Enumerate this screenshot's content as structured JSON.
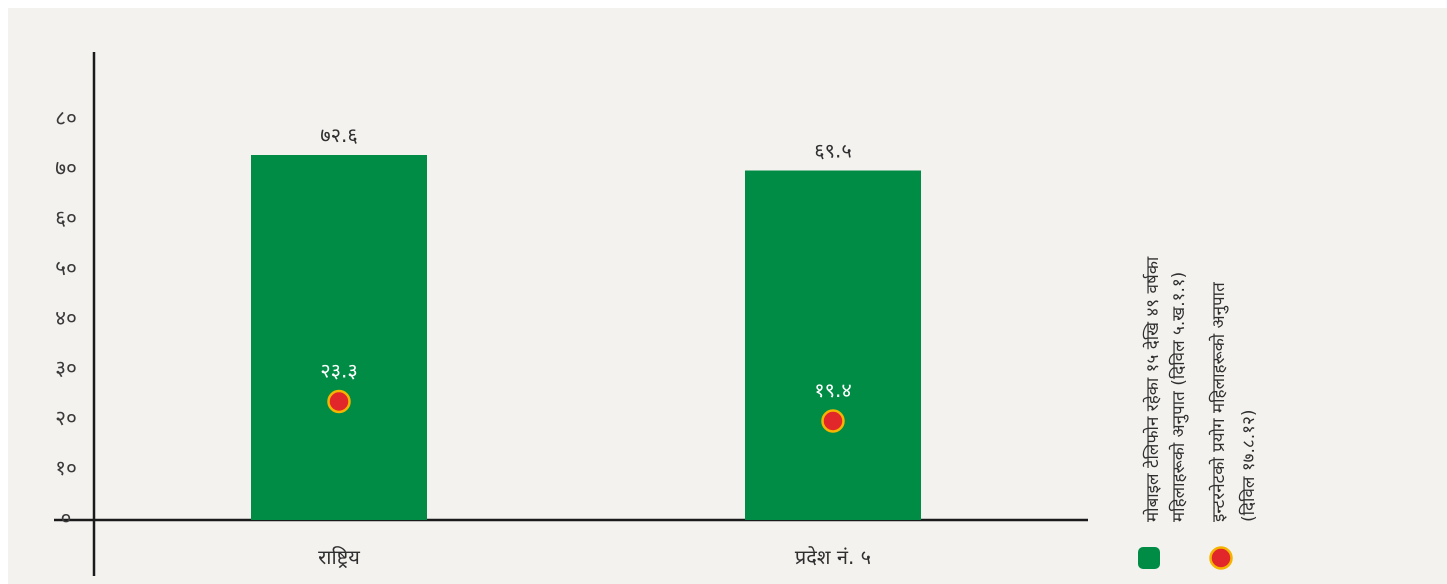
{
  "chart_data": {
    "type": "bar",
    "categories": [
      "राष्ट्रिय",
      "प्रदेश नं. ५"
    ],
    "series": [
      {
        "name": "मोबाइल टेलिफोन रहेका १५ देखि ४९ वर्षका महिलाहरूको अनुपात (दिविल ५.ख.१.१)",
        "kind": "bar",
        "color": "#008c44",
        "values": [
          72.6,
          69.5
        ],
        "labels": [
          "७२.६",
          "६९.५"
        ]
      },
      {
        "name": "इन्टरनेटको प्रयोग महिलाहरूको अनुपात (दिविल १७.८.१२)",
        "kind": "point",
        "color": "#e2272b",
        "stroke": "#f5b400",
        "values": [
          23.3,
          19.4
        ],
        "labels": [
          "२३.३",
          "१९.४"
        ]
      }
    ],
    "y_ticks": [
      {
        "value": 0,
        "label": "०"
      },
      {
        "value": 10,
        "label": "१०"
      },
      {
        "value": 20,
        "label": "२०"
      },
      {
        "value": 30,
        "label": "३०"
      },
      {
        "value": 40,
        "label": "४०"
      },
      {
        "value": 50,
        "label": "५०"
      },
      {
        "value": 60,
        "label": "६०"
      },
      {
        "value": 70,
        "label": "७०"
      },
      {
        "value": 80,
        "label": "८०"
      }
    ],
    "ylim": [
      0,
      80
    ],
    "xlabel": "",
    "ylabel": "",
    "title": "",
    "grid": false,
    "legend": {
      "placement": "right",
      "orientation": "vertical-text",
      "items": [
        {
          "lines": [
            "मोबाइल टेलिफोन रहेका १५ देखि ४९ वर्षका",
            "महिलाहरूको अनुपात (दिविल ५.ख.१.१)"
          ],
          "marker": "rounded-square",
          "color": "#008c44"
        },
        {
          "lines": [
            "इन्टरनेटको प्रयोग महिलाहरूको अनुपात",
            "(दिविल १७.८.१२)"
          ],
          "marker": "circle",
          "color": "#e2272b",
          "stroke": "#f5b400"
        }
      ]
    },
    "colors": {
      "background": "#f3f2ef",
      "axis": "#1a1a1a"
    }
  }
}
